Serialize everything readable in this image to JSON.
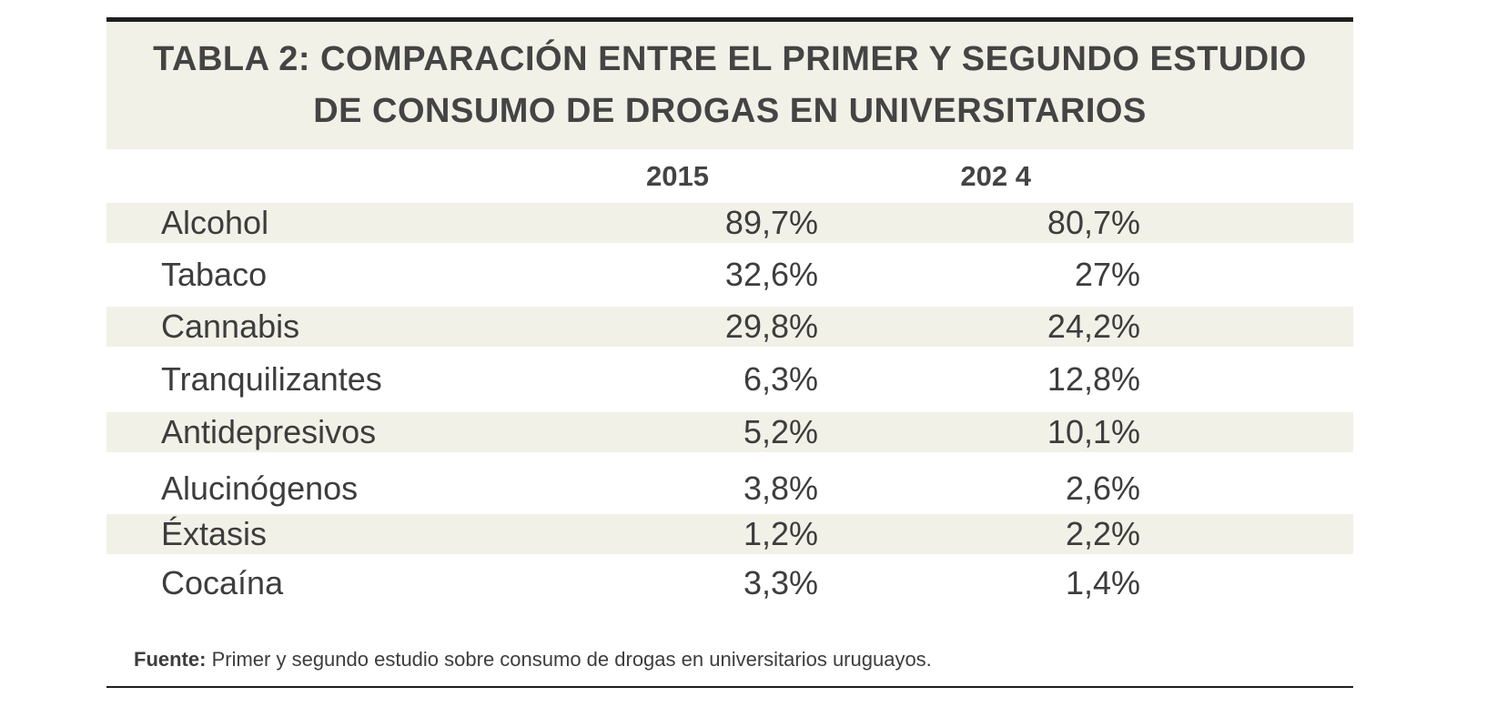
{
  "chart_data": {
    "type": "table",
    "title_lines": [
      "TABLA 2: COMPARACIÓN ENTRE EL PRIMER Y SEGUNDO ESTUDIO",
      "DE CONSUMO DE DROGAS EN UNIVERSITARIOS"
    ],
    "columns": [
      "2015",
      "202 4"
    ],
    "rows": [
      {
        "label": "Alcohol",
        "v2015": "89,7%",
        "v2024": "80,7%"
      },
      {
        "label": "Tabaco",
        "v2015": "32,6%",
        "v2024": "27%"
      },
      {
        "label": "Cannabis",
        "v2015": "29,8%",
        "v2024": "24,2%"
      },
      {
        "label": "Tranquilizantes",
        "v2015": "6,3%",
        "v2024": "12,8%"
      },
      {
        "label": "Antidepresivos",
        "v2015": "5,2%",
        "v2024": "10,1%"
      },
      {
        "label": "Alucinógenos",
        "v2015": "3,8%",
        "v2024": "2,6%"
      },
      {
        "label": "Éxtasis",
        "v2015": "1,2%",
        "v2024": "2,2%"
      },
      {
        "label": "Cocaína",
        "v2015": "3,3%",
        "v2024": "1,4%"
      }
    ],
    "source_label": "Fuente:",
    "source_text": "Primer y segundo estudio sobre consumo de drogas en universitarios uruguayos."
  },
  "colors": {
    "shade": "#f1f1e8",
    "rule": "#1f1f1f",
    "text": "#3d3d3d"
  }
}
